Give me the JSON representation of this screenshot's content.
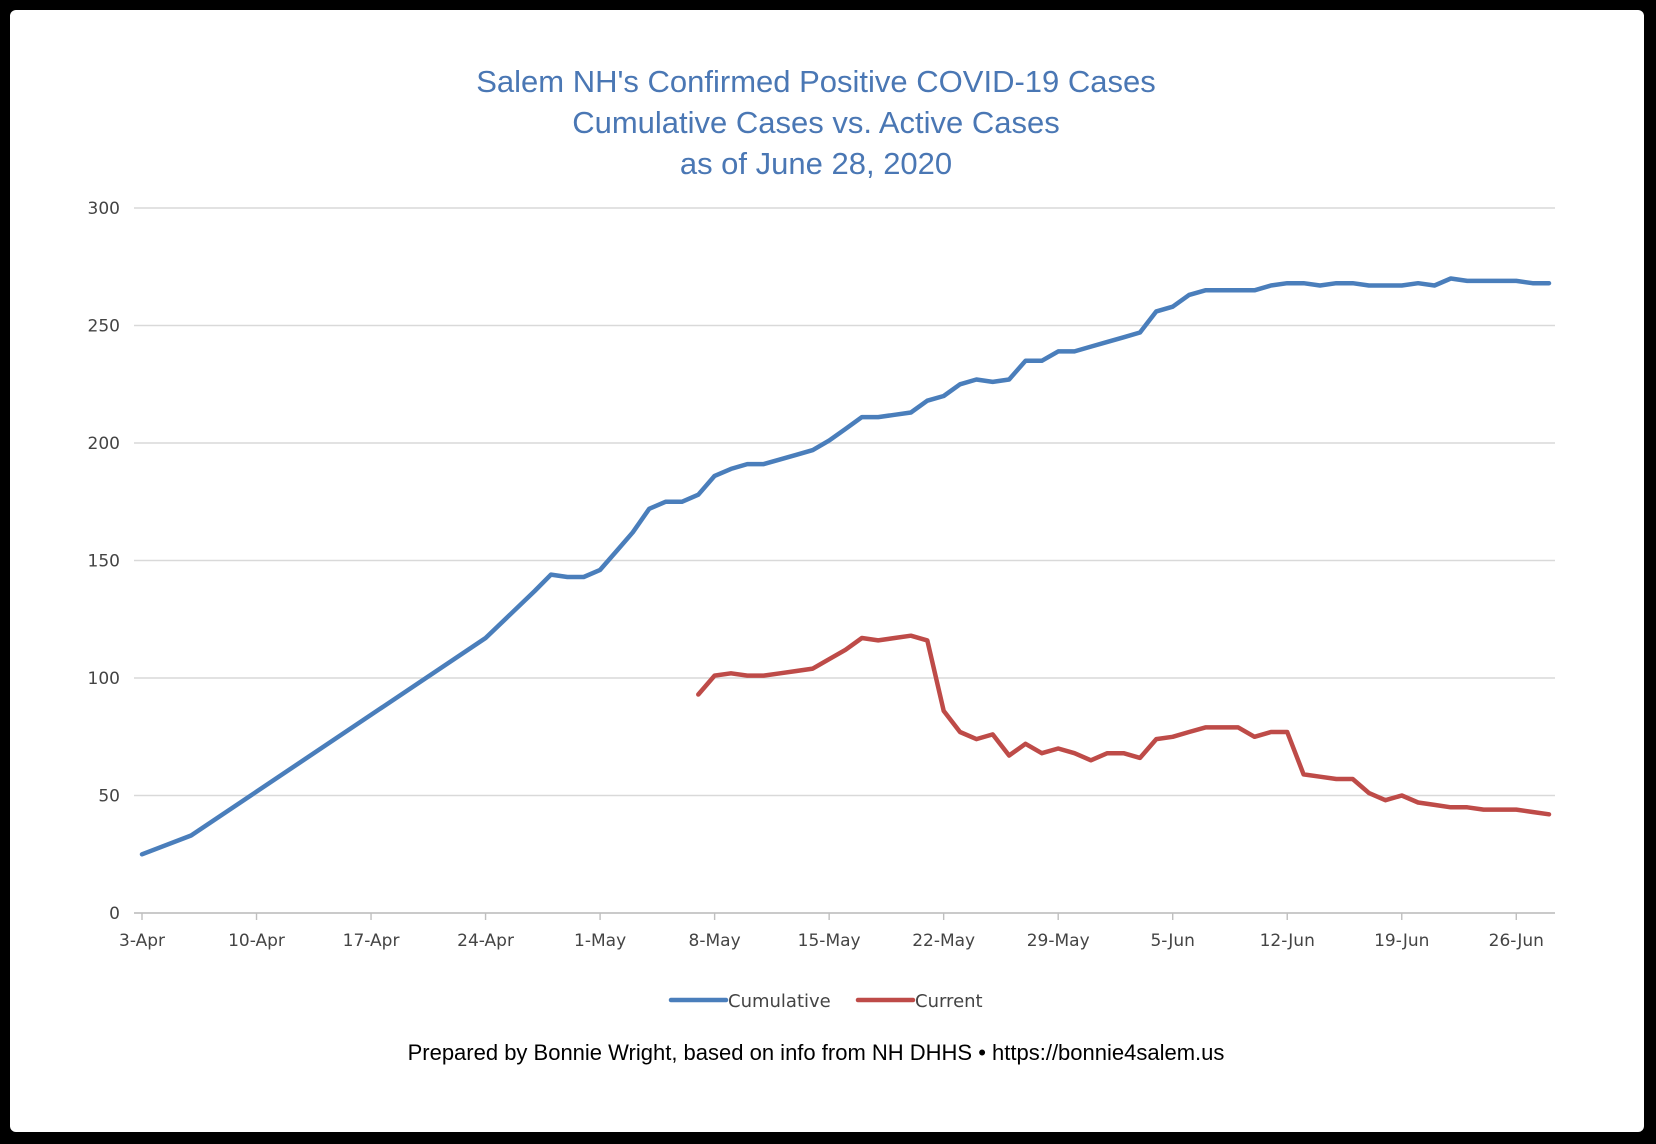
{
  "chart_data": {
    "type": "line",
    "title": [
      "Salem NH's Confirmed Positive COVID-19 Cases",
      "Cumulative Cases vs. Active Cases",
      "as of June 28, 2020"
    ],
    "xlabel": "",
    "ylabel": "",
    "ylim": [
      0,
      300
    ],
    "yticks": [
      0,
      50,
      100,
      150,
      200,
      250,
      300
    ],
    "xlim": [
      "2020-04-03",
      "2020-06-28"
    ],
    "xticks": [
      "3-Apr",
      "10-Apr",
      "17-Apr",
      "24-Apr",
      "1-May",
      "8-May",
      "15-May",
      "22-May",
      "29-May",
      "5-Jun",
      "12-Jun",
      "19-Jun",
      "26-Jun"
    ],
    "xtick_dates": [
      "2020-04-03",
      "2020-04-10",
      "2020-04-17",
      "2020-04-24",
      "2020-05-01",
      "2020-05-08",
      "2020-05-15",
      "2020-05-22",
      "2020-05-29",
      "2020-06-05",
      "2020-06-12",
      "2020-06-19",
      "2020-06-26"
    ],
    "grid": true,
    "legend_position": "bottom-center",
    "series": [
      {
        "name": "Cumulative",
        "color": "#4a7ebb",
        "points": [
          [
            "2020-04-03",
            25
          ],
          [
            "2020-04-06",
            33
          ],
          [
            "2020-04-24",
            117
          ],
          [
            "2020-04-27",
            137
          ],
          [
            "2020-04-28",
            144
          ],
          [
            "2020-04-29",
            143
          ],
          [
            "2020-04-30",
            143
          ],
          [
            "2020-05-01",
            146
          ],
          [
            "2020-05-02",
            154
          ],
          [
            "2020-05-03",
            162
          ],
          [
            "2020-05-04",
            172
          ],
          [
            "2020-05-05",
            175
          ],
          [
            "2020-05-06",
            175
          ],
          [
            "2020-05-07",
            178
          ],
          [
            "2020-05-08",
            186
          ],
          [
            "2020-05-09",
            189
          ],
          [
            "2020-05-10",
            191
          ],
          [
            "2020-05-11",
            191
          ],
          [
            "2020-05-12",
            193
          ],
          [
            "2020-05-13",
            195
          ],
          [
            "2020-05-14",
            197
          ],
          [
            "2020-05-15",
            201
          ],
          [
            "2020-05-16",
            206
          ],
          [
            "2020-05-17",
            211
          ],
          [
            "2020-05-18",
            211
          ],
          [
            "2020-05-19",
            212
          ],
          [
            "2020-05-20",
            213
          ],
          [
            "2020-05-21",
            218
          ],
          [
            "2020-05-22",
            220
          ],
          [
            "2020-05-23",
            225
          ],
          [
            "2020-05-24",
            227
          ],
          [
            "2020-05-25",
            226
          ],
          [
            "2020-05-26",
            227
          ],
          [
            "2020-05-27",
            235
          ],
          [
            "2020-05-28",
            235
          ],
          [
            "2020-05-29",
            239
          ],
          [
            "2020-05-30",
            239
          ],
          [
            "2020-05-31",
            241
          ],
          [
            "2020-06-01",
            243
          ],
          [
            "2020-06-02",
            245
          ],
          [
            "2020-06-03",
            247
          ],
          [
            "2020-06-04",
            256
          ],
          [
            "2020-06-05",
            258
          ],
          [
            "2020-06-06",
            263
          ],
          [
            "2020-06-07",
            265
          ],
          [
            "2020-06-08",
            265
          ],
          [
            "2020-06-09",
            265
          ],
          [
            "2020-06-10",
            265
          ],
          [
            "2020-06-11",
            267
          ],
          [
            "2020-06-12",
            268
          ],
          [
            "2020-06-13",
            268
          ],
          [
            "2020-06-14",
            267
          ],
          [
            "2020-06-15",
            268
          ],
          [
            "2020-06-16",
            268
          ],
          [
            "2020-06-17",
            267
          ],
          [
            "2020-06-18",
            267
          ],
          [
            "2020-06-19",
            267
          ],
          [
            "2020-06-20",
            268
          ],
          [
            "2020-06-21",
            267
          ],
          [
            "2020-06-22",
            270
          ],
          [
            "2020-06-23",
            269
          ],
          [
            "2020-06-24",
            269
          ],
          [
            "2020-06-25",
            269
          ],
          [
            "2020-06-26",
            269
          ],
          [
            "2020-06-27",
            268
          ],
          [
            "2020-06-28",
            268
          ]
        ]
      },
      {
        "name": "Current",
        "color": "#be4b48",
        "points": [
          [
            "2020-05-07",
            93
          ],
          [
            "2020-05-08",
            101
          ],
          [
            "2020-05-09",
            102
          ],
          [
            "2020-05-10",
            101
          ],
          [
            "2020-05-11",
            101
          ],
          [
            "2020-05-12",
            102
          ],
          [
            "2020-05-13",
            103
          ],
          [
            "2020-05-14",
            104
          ],
          [
            "2020-05-15",
            108
          ],
          [
            "2020-05-16",
            112
          ],
          [
            "2020-05-17",
            117
          ],
          [
            "2020-05-18",
            116
          ],
          [
            "2020-05-19",
            117
          ],
          [
            "2020-05-20",
            118
          ],
          [
            "2020-05-21",
            116
          ],
          [
            "2020-05-22",
            86
          ],
          [
            "2020-05-23",
            77
          ],
          [
            "2020-05-24",
            74
          ],
          [
            "2020-05-25",
            76
          ],
          [
            "2020-05-26",
            67
          ],
          [
            "2020-05-27",
            72
          ],
          [
            "2020-05-28",
            68
          ],
          [
            "2020-05-29",
            70
          ],
          [
            "2020-05-30",
            68
          ],
          [
            "2020-05-31",
            65
          ],
          [
            "2020-06-01",
            68
          ],
          [
            "2020-06-02",
            68
          ],
          [
            "2020-06-03",
            66
          ],
          [
            "2020-06-04",
            74
          ],
          [
            "2020-06-05",
            75
          ],
          [
            "2020-06-06",
            77
          ],
          [
            "2020-06-07",
            79
          ],
          [
            "2020-06-08",
            79
          ],
          [
            "2020-06-09",
            79
          ],
          [
            "2020-06-10",
            75
          ],
          [
            "2020-06-11",
            77
          ],
          [
            "2020-06-12",
            77
          ],
          [
            "2020-06-13",
            59
          ],
          [
            "2020-06-14",
            58
          ],
          [
            "2020-06-15",
            57
          ],
          [
            "2020-06-16",
            57
          ],
          [
            "2020-06-17",
            51
          ],
          [
            "2020-06-18",
            48
          ],
          [
            "2020-06-19",
            50
          ],
          [
            "2020-06-20",
            47
          ],
          [
            "2020-06-21",
            46
          ],
          [
            "2020-06-22",
            45
          ],
          [
            "2020-06-23",
            45
          ],
          [
            "2020-06-24",
            44
          ],
          [
            "2020-06-25",
            44
          ],
          [
            "2020-06-26",
            44
          ],
          [
            "2020-06-27",
            43
          ],
          [
            "2020-06-28",
            42
          ]
        ]
      }
    ],
    "footer": "Prepared by Bonnie Wright, based on info from NH DHHS • https://bonnie4salem.us"
  }
}
